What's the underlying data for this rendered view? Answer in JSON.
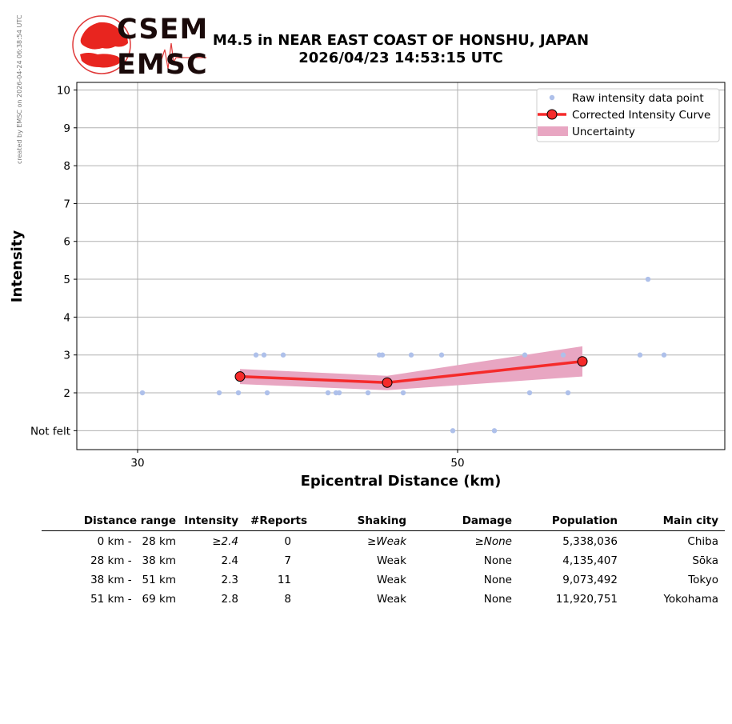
{
  "stamp": "created by EMSC on 2026-04-24 06:38:54 UTC",
  "logo": {
    "top": "CSEM",
    "bottom": "EMSC"
  },
  "title": {
    "line1": "M4.5 in NEAR EAST COAST OF HONSHU, JAPAN",
    "line2": "2026/04/23 14:53:15 UTC"
  },
  "colors": {
    "raw_points": "#aec0ea",
    "curve": "#f52a2a",
    "marker_face": "#f52a2a",
    "uncertainty": "#e8a6c2",
    "grid": "#b0b0b0"
  },
  "chart_data": {
    "type": "scatter",
    "xlabel": "Epicentral Distance (km)",
    "ylabel": "Intensity",
    "xlim": [
      26.2,
      66.7
    ],
    "ylim": [
      0.5,
      10.2
    ],
    "xticks": [
      30,
      50
    ],
    "yticks": [
      {
        "value": 1,
        "label": "Not felt"
      },
      {
        "value": 2,
        "label": "2"
      },
      {
        "value": 3,
        "label": "3"
      },
      {
        "value": 4,
        "label": "4"
      },
      {
        "value": 5,
        "label": "5"
      },
      {
        "value": 6,
        "label": "6"
      },
      {
        "value": 7,
        "label": "7"
      },
      {
        "value": 8,
        "label": "8"
      },
      {
        "value": 9,
        "label": "9"
      },
      {
        "value": 10,
        "label": "10"
      }
    ],
    "grid": true,
    "legend_position": "top-right",
    "legend": {
      "raw": "Raw intensity data point",
      "curve": "Corrected Intensity Curve",
      "band": "Uncertainty"
    },
    "raw_points": [
      [
        30.3,
        2
      ],
      [
        35.1,
        2
      ],
      [
        36.3,
        2
      ],
      [
        37.4,
        3
      ],
      [
        37.9,
        3
      ],
      [
        38.1,
        2
      ],
      [
        39.1,
        3
      ],
      [
        41.9,
        2
      ],
      [
        42.4,
        2
      ],
      [
        42.6,
        2
      ],
      [
        44.4,
        2
      ],
      [
        45.1,
        3
      ],
      [
        45.3,
        3
      ],
      [
        46.6,
        2
      ],
      [
        47.1,
        3
      ],
      [
        49.0,
        3
      ],
      [
        49.7,
        1
      ],
      [
        52.3,
        1
      ],
      [
        54.2,
        3
      ],
      [
        54.5,
        2
      ],
      [
        56.6,
        3
      ],
      [
        56.9,
        2
      ],
      [
        61.4,
        3
      ],
      [
        61.9,
        5
      ],
      [
        62.9,
        3
      ]
    ],
    "curve": {
      "x": [
        36.4,
        45.6,
        57.8
      ],
      "y": [
        2.43,
        2.27,
        2.83
      ],
      "lower": [
        2.23,
        2.07,
        2.43
      ],
      "upper": [
        2.63,
        2.45,
        3.23
      ]
    }
  },
  "table": {
    "headers": [
      "Distance range",
      "Intensity",
      "#Reports",
      "Shaking",
      "Damage",
      "Population",
      "Main city"
    ],
    "rows": [
      {
        "range": "0 km -   28 km",
        "intensity": "≥2.4",
        "reports": "0",
        "shaking": "≥Weak",
        "damage": "≥None",
        "population": "5,338,036",
        "city": "Chiba"
      },
      {
        "range": "28 km -   38 km",
        "intensity": "2.4",
        "reports": "7",
        "shaking": "Weak",
        "damage": "None",
        "population": "4,135,407",
        "city": "Sōka"
      },
      {
        "range": "38 km -   51 km",
        "intensity": "2.3",
        "reports": "11",
        "shaking": "Weak",
        "damage": "None",
        "population": "9,073,492",
        "city": "Tokyo"
      },
      {
        "range": "51 km -   69 km",
        "intensity": "2.8",
        "reports": "8",
        "shaking": "Weak",
        "damage": "None",
        "population": "11,920,751",
        "city": "Yokohama"
      }
    ]
  }
}
